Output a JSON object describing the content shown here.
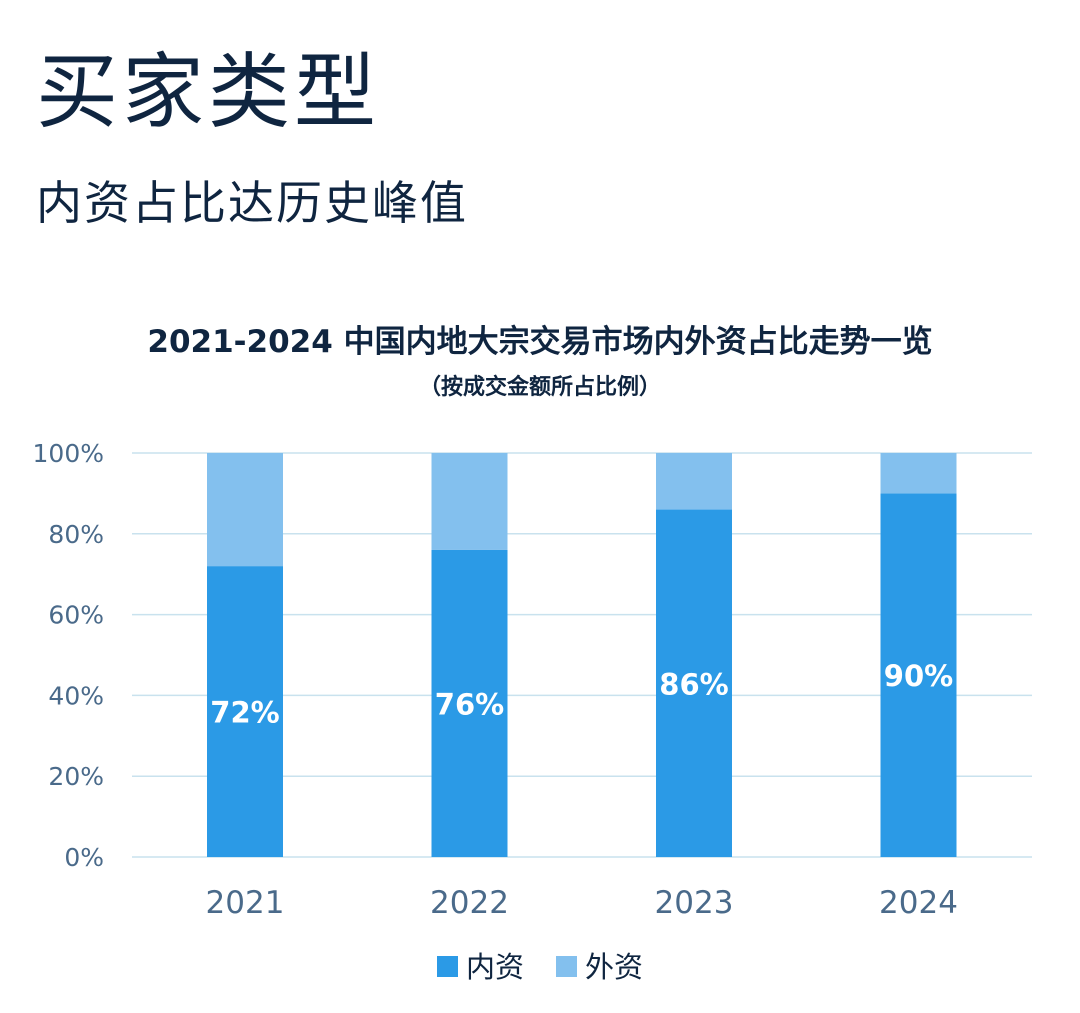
{
  "header": {
    "title": "买家类型",
    "subtitle": "内资占比达历史峰值"
  },
  "colors": {
    "text_dark": "#0f2540",
    "axis_text": "#4a6a8a",
    "domestic": "#2b9ae6",
    "foreign": "#83c0ee",
    "gridline": "#c9e2ee",
    "label": "#ffffff"
  },
  "chart_data": {
    "type": "bar",
    "stacked": true,
    "normalized": true,
    "title": "2021-2024 中国内地大宗交易市场内外资占比走势一览",
    "subtitle": "（按成交金额所占比例）",
    "categories": [
      "2021",
      "2022",
      "2023",
      "2024"
    ],
    "series": [
      {
        "name": "内资",
        "values": [
          72,
          76,
          86,
          90
        ],
        "data_labels": [
          "72%",
          "76%",
          "86%",
          "90%"
        ]
      },
      {
        "name": "外资",
        "values": [
          28,
          24,
          14,
          10
        ]
      }
    ],
    "ylim": [
      0,
      100
    ],
    "yticks": [
      "0%",
      "20%",
      "40%",
      "60%",
      "80%",
      "100%"
    ],
    "grid": true,
    "legend_position": "bottom-center"
  }
}
